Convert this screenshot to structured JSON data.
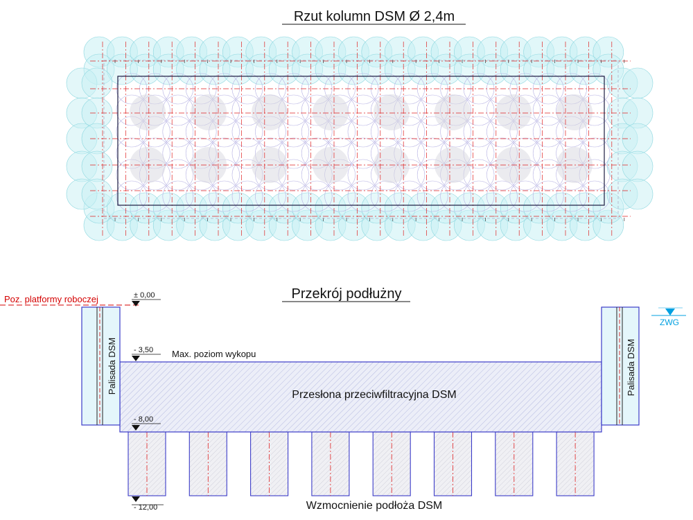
{
  "plan": {
    "title": "Rzut kolumn DSM Ø 2,4m"
  },
  "section": {
    "title": "Przekrój podłużny",
    "platform_label": "Poz. platformy roboczej",
    "level_000": "± 0,00",
    "level_350": "- 3,50",
    "level_800": "- 8,00",
    "level_1200": "- 12,00",
    "max_excavation_label": "Max. poziom wykopu",
    "barrier_label": "Przesłona przeciwfiltracyjna DSM",
    "palisade_left": "Palisada DSM",
    "palisade_right": "Palisada DSM",
    "groundwater_label": "ZWG",
    "reinforcement_label": "Wzmocnienie podłoża DSM",
    "reinforcement_column_count": 8
  },
  "colors": {
    "outline": "#3b3bc8",
    "axis_red": "#e02020",
    "circle_fill": "#c8f0f4",
    "circle_stroke": "#8fd8e0",
    "hatch": "#9aa0d8",
    "groundwater": "#00a0e0",
    "platform": "#d40000"
  }
}
